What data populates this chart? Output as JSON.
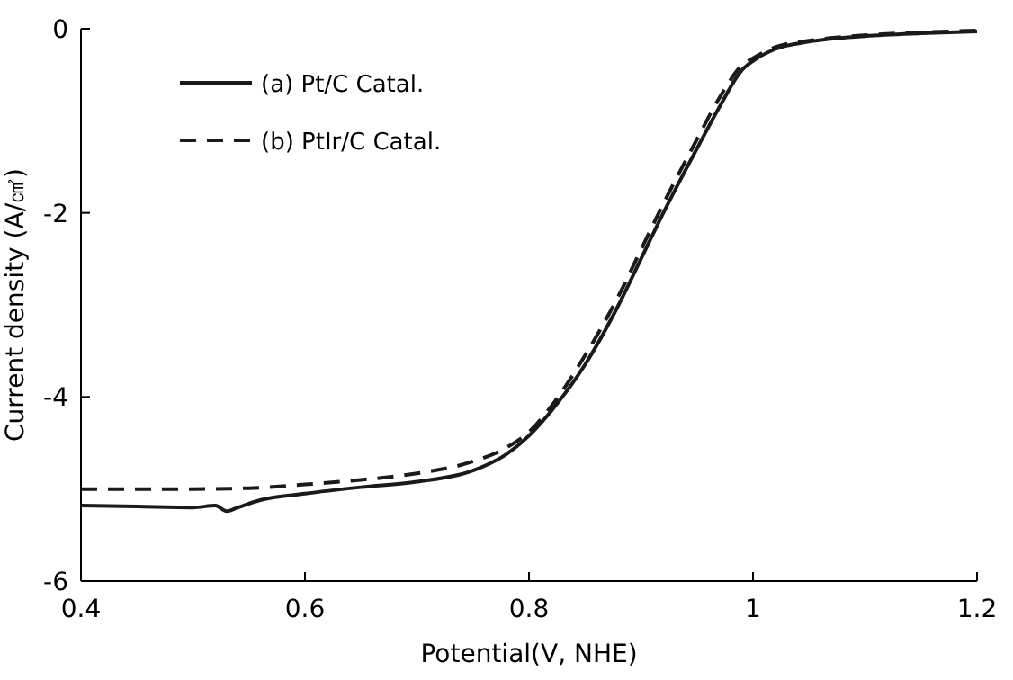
{
  "chart_data": {
    "type": "line",
    "xlabel": "Potential(V, NHE)",
    "ylabel": "Current density (A/㎠)",
    "xlim": [
      0.4,
      1.2
    ],
    "xticks": [
      0.4,
      0.6,
      0.8,
      1,
      1.2
    ],
    "ylim": [
      -6,
      0
    ],
    "yticks": [
      -6,
      -4,
      -2,
      0
    ],
    "legend": "top left",
    "series": [
      {
        "name": "(a) Pt/C Catal.",
        "color": "#1a1a1a",
        "line_style": "solid",
        "x": [
          0.4,
          0.45,
          0.5,
          0.52,
          0.53,
          0.54,
          0.56,
          0.6,
          0.65,
          0.7,
          0.75,
          0.78,
          0.8,
          0.82,
          0.85,
          0.88,
          0.9,
          0.92,
          0.95,
          0.97,
          0.99,
          1.0,
          1.02,
          1.05,
          1.1,
          1.15,
          1.2
        ],
        "values": [
          -5.18,
          -5.19,
          -5.2,
          -5.18,
          -5.24,
          -5.2,
          -5.12,
          -5.05,
          -4.98,
          -4.92,
          -4.8,
          -4.62,
          -4.42,
          -4.15,
          -3.65,
          -3.0,
          -2.5,
          -2.0,
          -1.3,
          -0.85,
          -0.45,
          -0.35,
          -0.22,
          -0.14,
          -0.08,
          -0.05,
          -0.03
        ]
      },
      {
        "name": "(b) PtIr/C Catal.",
        "color": "#1a1a1a",
        "line_style": "dashed",
        "x": [
          0.4,
          0.45,
          0.5,
          0.55,
          0.6,
          0.65,
          0.7,
          0.75,
          0.78,
          0.8,
          0.82,
          0.85,
          0.88,
          0.9,
          0.92,
          0.95,
          0.97,
          0.99,
          1.0,
          1.02,
          1.05,
          1.1,
          1.15,
          1.2
        ],
        "values": [
          -5.0,
          -5.0,
          -5.0,
          -4.99,
          -4.95,
          -4.9,
          -4.83,
          -4.7,
          -4.55,
          -4.38,
          -4.1,
          -3.55,
          -2.9,
          -2.4,
          -1.9,
          -1.2,
          -0.75,
          -0.4,
          -0.32,
          -0.2,
          -0.13,
          -0.07,
          -0.04,
          -0.02
        ]
      }
    ]
  }
}
